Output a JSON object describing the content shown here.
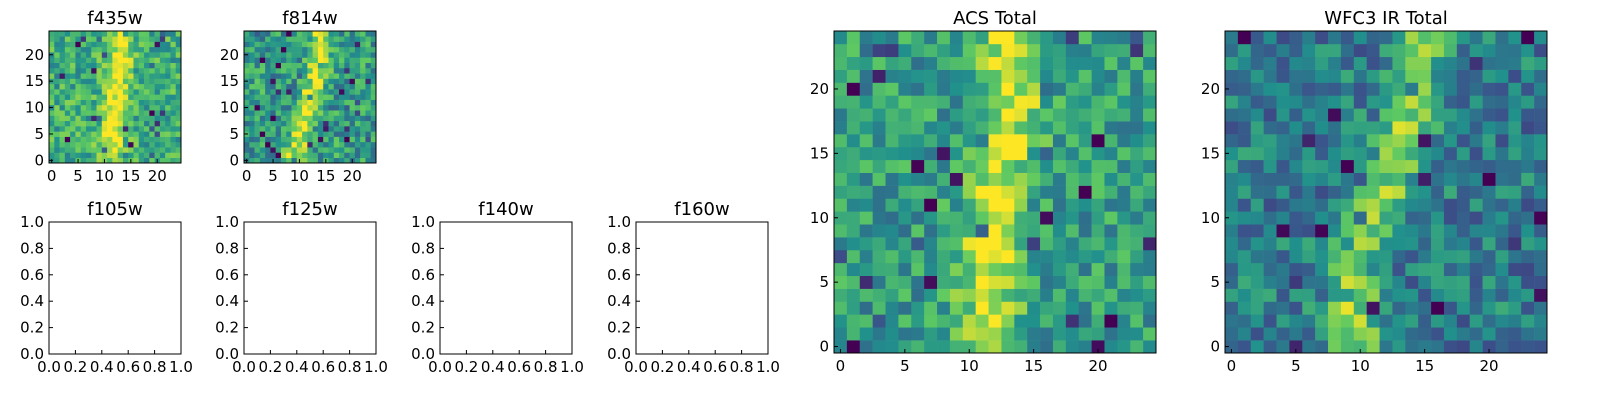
{
  "chart_data": [
    {
      "type": "heatmap",
      "title": "f435w",
      "xticks": [
        "0",
        "5",
        "10",
        "15",
        "20"
      ],
      "yticks": [
        "0",
        "5",
        "10",
        "15",
        "20"
      ],
      "xlim": [
        -0.5,
        24.5
      ],
      "ylim": [
        -0.5,
        24.5
      ],
      "colormap": "viridis",
      "values": "25x25 pixel grid, noisy background with a bright vertical streak near x=11-14",
      "seed": 11,
      "streak": [
        [
          0,
          11.0
        ],
        [
          10,
          12.0
        ],
        [
          24,
          13.5
        ]
      ],
      "width": 2.2,
      "noise": 0.2,
      "base": 0.62
    },
    {
      "type": "heatmap",
      "title": "f814w",
      "xticks": [
        "0",
        "5",
        "10",
        "15",
        "20"
      ],
      "yticks": [
        "0",
        "5",
        "10",
        "15",
        "20"
      ],
      "xlim": [
        -0.5,
        24.5
      ],
      "ylim": [
        -0.5,
        24.5
      ],
      "colormap": "viridis",
      "seed": 23,
      "streak": [
        [
          0,
          9.0
        ],
        [
          10,
          11.5
        ],
        [
          20,
          14.0
        ],
        [
          24,
          14.0
        ]
      ],
      "width": 2.0,
      "noise": 0.22,
      "base": 0.55
    },
    {
      "type": "empty",
      "title": "f105w",
      "ticks": [
        "0.0",
        "0.2",
        "0.4",
        "0.6",
        "0.8",
        "1.0"
      ]
    },
    {
      "type": "empty",
      "title": "f125w",
      "ticks": [
        "0.0",
        "0.2",
        "0.4",
        "0.6",
        "0.8",
        "1.0"
      ]
    },
    {
      "type": "empty",
      "title": "f140w",
      "ticks": [
        "0.0",
        "0.2",
        "0.4",
        "0.6",
        "0.8",
        "1.0"
      ]
    },
    {
      "type": "empty",
      "title": "f160w",
      "ticks": [
        "0.0",
        "0.2",
        "0.4",
        "0.6",
        "0.8",
        "1.0"
      ]
    },
    {
      "type": "heatmap",
      "title": "ACS Total",
      "xticks": [
        "0",
        "5",
        "10",
        "15",
        "20"
      ],
      "yticks": [
        "0",
        "5",
        "10",
        "15",
        "20"
      ],
      "xlim": [
        -0.5,
        24.5
      ],
      "ylim": [
        -0.5,
        24.5
      ],
      "colormap": "viridis",
      "seed": 37,
      "streak": [
        [
          0,
          11.5
        ],
        [
          8,
          11.5
        ],
        [
          14,
          12.5
        ],
        [
          20,
          13.5
        ],
        [
          24,
          13.0
        ]
      ],
      "width": 2.3,
      "noise": 0.2,
      "base": 0.55
    },
    {
      "type": "heatmap",
      "title": "WFC3 IR Total",
      "xticks": [
        "0",
        "5",
        "10",
        "15",
        "20"
      ],
      "yticks": [
        "0",
        "5",
        "10",
        "15",
        "20"
      ],
      "xlim": [
        -0.5,
        24.5
      ],
      "ylim": [
        -0.5,
        24.5
      ],
      "colormap": "viridis",
      "seed": 53,
      "streak": [
        [
          0,
          9.5
        ],
        [
          6,
          9.5
        ],
        [
          12,
          12.0
        ],
        [
          18,
          14.0
        ],
        [
          24,
          14.5
        ]
      ],
      "width": 2.0,
      "noise": 0.2,
      "base": 0.42
    }
  ]
}
